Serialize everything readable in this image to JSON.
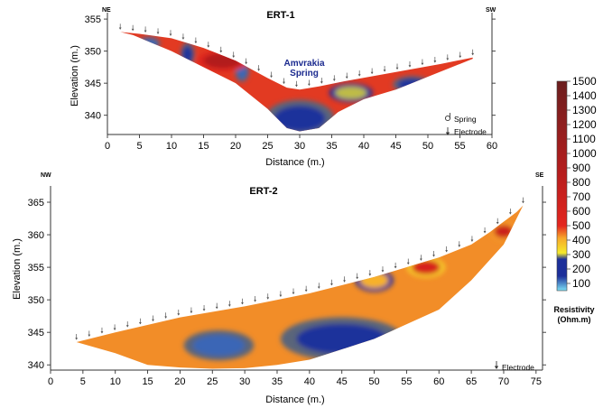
{
  "chart_data": [
    {
      "type": "heatmap",
      "title": "ERT-1",
      "xlabel": "Distance (m.)",
      "ylabel": "Elevation (m.)",
      "xlim": [
        0,
        60
      ],
      "ylim": [
        337,
        356
      ],
      "xticks": [
        0,
        5,
        10,
        15,
        20,
        25,
        30,
        35,
        40,
        45,
        50,
        55,
        60
      ],
      "yticks": [
        340,
        345,
        350,
        355
      ],
      "direction_left": "NE",
      "direction_right": "SW",
      "annotation": "Amvrakia\nSpring",
      "annotation_lines": [
        "Amvrakia",
        "Spring"
      ],
      "legend": [
        {
          "symbol": "spring-icon",
          "label": "Spring"
        },
        {
          "symbol": "electrode-arrow-icon",
          "label": "Electrode"
        }
      ],
      "surface_profile": {
        "x": [
          2,
          5,
          10,
          15,
          20,
          25,
          28,
          30,
          33,
          37,
          42,
          47,
          52,
          57
        ],
        "y": [
          353,
          352.7,
          352,
          350.5,
          348.5,
          345.8,
          344.3,
          344,
          344.5,
          345.3,
          346.2,
          347.1,
          348,
          349
        ]
      },
      "section_bottom": {
        "x": [
          4,
          10,
          15,
          20,
          25,
          28,
          30,
          33,
          36,
          40,
          45,
          50,
          55,
          57
        ],
        "y": [
          352.5,
          350,
          347.5,
          345,
          341,
          338,
          337.5,
          338,
          340.5,
          342.5,
          344,
          346,
          348,
          348.8
        ]
      },
      "resistivity_zones": [
        {
          "x": 30,
          "y": 339.5,
          "resistivity": 150,
          "rx": 4,
          "ry": 2
        },
        {
          "x": 6.5,
          "y": 351.2,
          "resistivity": 120,
          "rx": 1.3,
          "ry": 0.7
        },
        {
          "x": 12.5,
          "y": 349.5,
          "resistivity": 150,
          "rx": 0.8,
          "ry": 1.3
        },
        {
          "x": 21,
          "y": 346.8,
          "resistivity": 120,
          "rx": 0.8,
          "ry": 1.1
        },
        {
          "x": 47.5,
          "y": 344.8,
          "resistivity": 150,
          "rx": 2.2,
          "ry": 0.9
        },
        {
          "x": 18,
          "y": 348.5,
          "resistivity": 900,
          "rx": 3,
          "ry": 1.2
        },
        {
          "x": 38,
          "y": 343.5,
          "resistivity": 300,
          "rx": 2.5,
          "ry": 1
        }
      ]
    },
    {
      "type": "heatmap",
      "title": "ERT-2",
      "xlabel": "Distance (m.)",
      "ylabel": "Elevation (m.)",
      "xlim": [
        0,
        76
      ],
      "ylim": [
        339.2,
        367.5
      ],
      "xticks": [
        0,
        5,
        10,
        15,
        20,
        25,
        30,
        35,
        40,
        45,
        50,
        55,
        60,
        65,
        70,
        75
      ],
      "yticks": [
        340,
        345,
        350,
        355,
        360,
        365
      ],
      "direction_left": "NW",
      "direction_right": "SE",
      "legend": [
        {
          "symbol": "electrode-arrow-icon",
          "label": "Electrode"
        }
      ],
      "surface_profile": {
        "x": [
          4,
          10,
          20,
          30,
          40,
          50,
          60,
          65,
          68,
          70,
          72,
          73
        ],
        "y": [
          343.5,
          345,
          347.3,
          349,
          351,
          353.5,
          356.5,
          358.5,
          360.5,
          362,
          363.5,
          364.5
        ]
      },
      "section_bottom": {
        "x": [
          4,
          10,
          15,
          20,
          25,
          30,
          35,
          40,
          50,
          60,
          65,
          70,
          73
        ],
        "y": [
          343.5,
          341.8,
          340,
          339.6,
          339.4,
          339.5,
          340,
          340.8,
          344,
          348.5,
          353,
          358.5,
          364.5
        ]
      },
      "resistivity_zones": [
        {
          "x": 26,
          "y": 343,
          "resistivity": 120,
          "rx": 4,
          "ry": 1.6
        },
        {
          "x": 45,
          "y": 344,
          "resistivity": 150,
          "rx": 7,
          "ry": 2.3
        },
        {
          "x": 50,
          "y": 353,
          "resistivity": 400,
          "rx": 2.2,
          "ry": 1.2
        },
        {
          "x": 58,
          "y": 355,
          "resistivity": 600,
          "rx": 2.2,
          "ry": 1.1
        },
        {
          "x": 70,
          "y": 360.5,
          "resistivity": 700,
          "rx": 1.5,
          "ry": 1
        }
      ]
    }
  ],
  "colorbar": {
    "ticks": [
      100,
      200,
      300,
      400,
      500,
      600,
      700,
      800,
      900,
      1000,
      1100,
      1200,
      1300,
      1400,
      1500
    ],
    "title": "Resistivity",
    "unit": "(Ohm.m)",
    "colors": [
      "#7de0f5",
      "#1c2f9a",
      "#f5ea2a",
      "#f7a92a",
      "#e4261f",
      "#b81d1d",
      "#6b1e1e"
    ]
  }
}
